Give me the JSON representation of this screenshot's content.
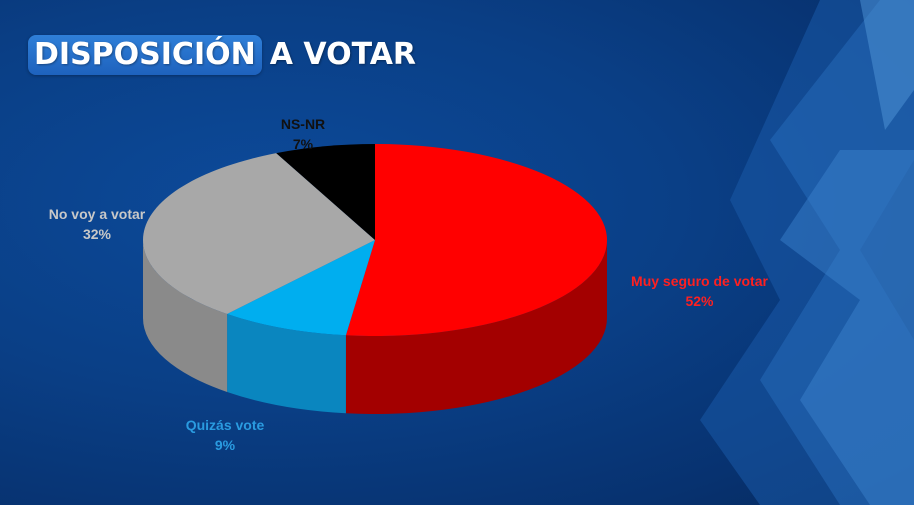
{
  "title": {
    "highlight": "DISPOSICIÓN",
    "rest": "A VOTAR"
  },
  "colors": {
    "background": "#0a3f86",
    "title_box": "#2a74d0"
  },
  "chart_data": {
    "type": "pie",
    "style": "3d",
    "title": "DISPOSICIÓN A VOTAR",
    "slices": [
      {
        "label": "Muy seguro de votar",
        "value": 52,
        "value_label": "52%",
        "color": "#ff0000",
        "side_color": "#a30000",
        "label_color": "#ff2020"
      },
      {
        "label": "Quizás vote",
        "value": 9,
        "value_label": "9%",
        "color": "#00aeef",
        "side_color": "#0a86bf",
        "label_color": "#2a9be0"
      },
      {
        "label": "No voy a votar",
        "value": 32,
        "value_label": "32%",
        "color": "#a8a8a8",
        "side_color": "#8a8a8a",
        "label_color": "#c8c8c8"
      },
      {
        "label": "NS-NR",
        "value": 7,
        "value_label": "7%",
        "color": "#000000",
        "side_color": "#000000",
        "label_color": "#111111"
      }
    ]
  }
}
